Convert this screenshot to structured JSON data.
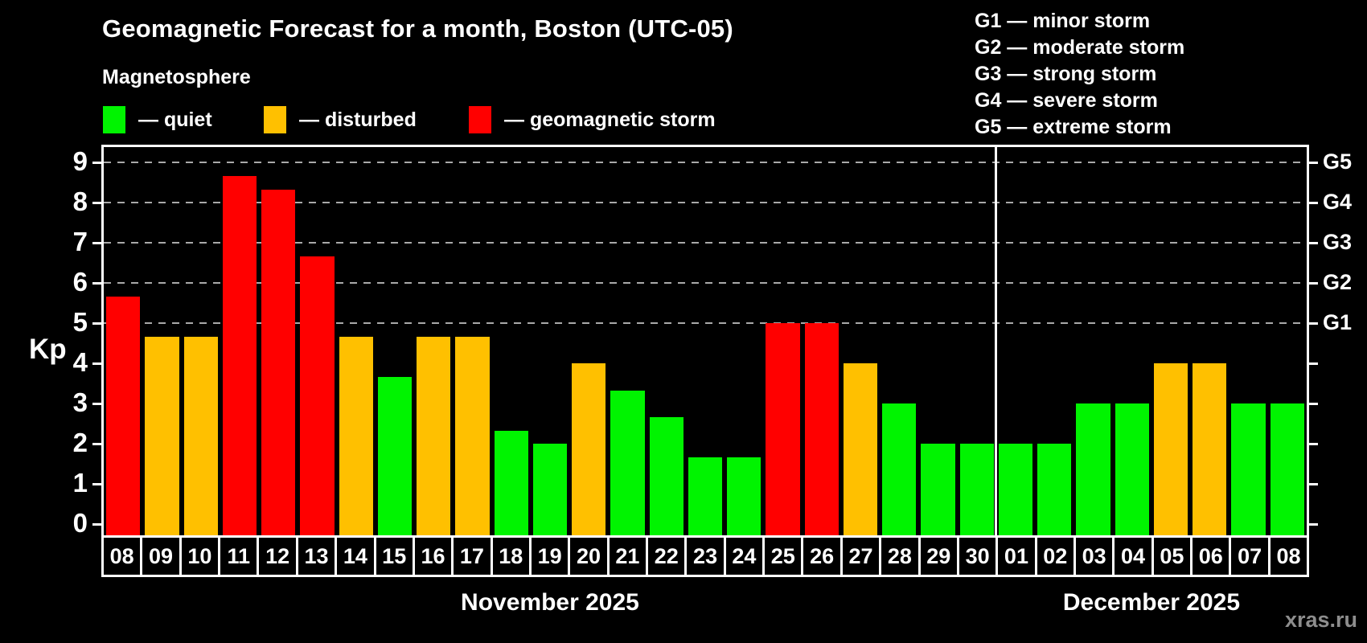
{
  "header": {
    "title": "Geomagnetic Forecast for a month, Boston (UTC-05)",
    "subtitle": "Magnetosphere"
  },
  "legend": {
    "items": [
      {
        "id": "quiet",
        "label": "— quiet"
      },
      {
        "id": "disturbed",
        "label": "— disturbed"
      },
      {
        "id": "storm",
        "label": "— geomagnetic storm"
      }
    ]
  },
  "g_scale_legend": [
    "G1 — minor storm",
    "G2 — moderate storm",
    "G3 — strong storm",
    "G4 — severe storm",
    "G5 — extreme storm"
  ],
  "axis": {
    "kp_label": "Kp",
    "left_ticks": [
      "0",
      "1",
      "2",
      "3",
      "4",
      "5",
      "6",
      "7",
      "8",
      "9"
    ],
    "right_labels": [
      {
        "kp": 5,
        "label": "G1"
      },
      {
        "kp": 6,
        "label": "G2"
      },
      {
        "kp": 7,
        "label": "G3"
      },
      {
        "kp": 8,
        "label": "G4"
      },
      {
        "kp": 9,
        "label": "G5"
      }
    ]
  },
  "watermark": "xras.ru",
  "chart_data": {
    "type": "bar",
    "title": "Geomagnetic Forecast for a month, Boston (UTC-05)",
    "xlabel": "",
    "ylabel": "Kp",
    "ylim": [
      0,
      9
    ],
    "grid": "dashed horizontal at Kp 5-9 only",
    "legend_position": "top-left",
    "gridlines_at": [
      5,
      6,
      7,
      8,
      9
    ],
    "categories": [
      "08",
      "09",
      "10",
      "11",
      "12",
      "13",
      "14",
      "15",
      "16",
      "17",
      "18",
      "19",
      "20",
      "21",
      "22",
      "23",
      "24",
      "25",
      "26",
      "27",
      "28",
      "29",
      "30",
      "01",
      "02",
      "03",
      "04",
      "05",
      "06",
      "07",
      "08"
    ],
    "values": [
      5.67,
      4.67,
      4.67,
      8.67,
      8.33,
      6.67,
      4.67,
      3.67,
      4.67,
      4.67,
      2.33,
      2,
      4,
      3.33,
      2.67,
      1.67,
      1.67,
      5,
      5,
      4,
      3,
      2,
      2,
      2,
      2,
      3,
      3,
      4,
      4,
      3,
      3
    ],
    "statuses": [
      "storm",
      "disturbed",
      "disturbed",
      "storm",
      "storm",
      "storm",
      "disturbed",
      "quiet",
      "disturbed",
      "disturbed",
      "quiet",
      "quiet",
      "disturbed",
      "quiet",
      "quiet",
      "quiet",
      "quiet",
      "storm",
      "storm",
      "disturbed",
      "quiet",
      "quiet",
      "quiet",
      "quiet",
      "quiet",
      "quiet",
      "quiet",
      "disturbed",
      "disturbed",
      "quiet",
      "quiet"
    ],
    "status_colors": {
      "quiet": "#00f400",
      "disturbed": "#ffc000",
      "storm": "#ff0000"
    },
    "months": [
      {
        "label": "November 2025",
        "days": 23
      },
      {
        "label": "December 2025",
        "days": 8
      }
    ]
  }
}
